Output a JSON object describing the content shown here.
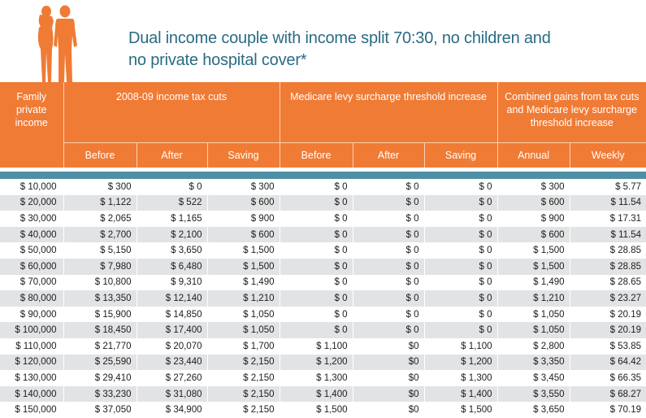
{
  "title": {
    "line1": "Dual income couple with income split 70:30, no children and",
    "line2": "no private hospital cover*"
  },
  "colors": {
    "header": "#f07b35",
    "teal": "#4e8fa5",
    "title": "#2a6b83",
    "alt_row": "#e2e3e5"
  },
  "icons": {
    "couple": "couple-silhouette-icon"
  },
  "table": {
    "col_income_line1": "Family",
    "col_income_line2": "private",
    "col_income_line3": "income",
    "group1": "2008-09 income tax cuts",
    "group2": "Medicare levy surcharge threshold increase",
    "group3_line1": "Combined gains from tax cuts",
    "group3_line2": "and Medicare levy surcharge",
    "group3_line3": "threshold increase",
    "sub": [
      "Before",
      "After",
      "Saving",
      "Before",
      "After",
      "Saving",
      "Annual",
      "Weekly"
    ],
    "rows": [
      [
        "$ 10,000",
        "$ 300",
        "$ 0",
        "$ 300",
        "$ 0",
        "$ 0",
        "$ 0",
        "$ 300",
        "$ 5.77"
      ],
      [
        "$ 20,000",
        "$ 1,122",
        "$ 522",
        "$ 600",
        "$ 0",
        "$ 0",
        "$ 0",
        "$ 600",
        "$ 11.54"
      ],
      [
        "$ 30,000",
        "$ 2,065",
        "$ 1,165",
        "$ 900",
        "$ 0",
        "$ 0",
        "$ 0",
        "$ 900",
        "$ 17.31"
      ],
      [
        "$ 40,000",
        "$ 2,700",
        "$ 2,100",
        "$ 600",
        "$ 0",
        "$ 0",
        "$ 0",
        "$ 600",
        "$ 11.54"
      ],
      [
        "$ 50,000",
        "$ 5,150",
        "$ 3,650",
        "$ 1,500",
        "$ 0",
        "$ 0",
        "$ 0",
        "$ 1,500",
        "$ 28.85"
      ],
      [
        "$ 60,000",
        "$ 7,980",
        "$ 6,480",
        "$ 1,500",
        "$ 0",
        "$ 0",
        "$ 0",
        "$ 1,500",
        "$ 28.85"
      ],
      [
        "$ 70,000",
        "$ 10,800",
        "$ 9,310",
        "$ 1,490",
        "$ 0",
        "$ 0",
        "$ 0",
        "$ 1,490",
        "$ 28.65"
      ],
      [
        "$ 80,000",
        "$ 13,350",
        "$ 12,140",
        "$ 1,210",
        "$ 0",
        "$ 0",
        "$ 0",
        "$ 1,210",
        "$ 23.27"
      ],
      [
        "$ 90,000",
        "$ 15,900",
        "$ 14,850",
        "$ 1,050",
        "$ 0",
        "$ 0",
        "$ 0",
        "$ 1,050",
        "$ 20.19"
      ],
      [
        "$ 100,000",
        "$ 18,450",
        "$ 17,400",
        "$ 1,050",
        "$ 0",
        "$ 0",
        "$ 0",
        "$ 1,050",
        "$ 20.19"
      ],
      [
        "$ 110,000",
        "$ 21,770",
        "$ 20,070",
        "$ 1,700",
        "$ 1,100",
        "$0",
        "$ 1,100",
        "$ 2,800",
        "$ 53.85"
      ],
      [
        "$ 120,000",
        "$ 25,590",
        "$ 23,440",
        "$ 2,150",
        "$ 1,200",
        "$0",
        "$ 1,200",
        "$ 3,350",
        "$ 64.42"
      ],
      [
        "$ 130,000",
        "$ 29,410",
        "$ 27,260",
        "$ 2,150",
        "$ 1,300",
        "$0",
        "$ 1,300",
        "$ 3,450",
        "$ 66.35"
      ],
      [
        "$ 140,000",
        "$ 33,230",
        "$ 31,080",
        "$ 2,150",
        "$ 1,400",
        "$0",
        "$ 1,400",
        "$ 3,550",
        "$ 68.27"
      ],
      [
        "$ 150,000",
        "$ 37,050",
        "$ 34,900",
        "$ 2,150",
        "$ 1,500",
        "$0",
        "$ 1,500",
        "$ 3,650",
        "$ 70.19"
      ]
    ]
  }
}
